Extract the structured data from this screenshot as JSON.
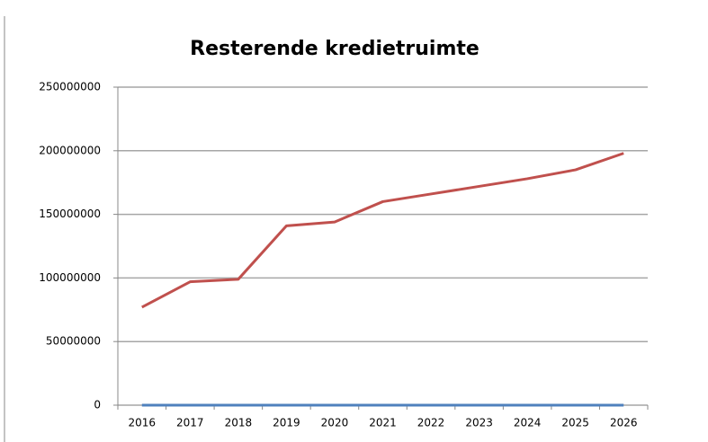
{
  "chart_data": {
    "type": "line",
    "title": "Resterende kredietruimte",
    "categories": [
      "2016",
      "2017",
      "2018",
      "2019",
      "2020",
      "2021",
      "2022",
      "2023",
      "2024",
      "2025",
      "2026"
    ],
    "series": [
      {
        "color": "#c0504d",
        "values": [
          77000000,
          97000000,
          99000000,
          141000000,
          144000000,
          160000000,
          166000000,
          172000000,
          178000000,
          185000000,
          198000000
        ]
      },
      {
        "color": "#4f81bd",
        "values": [
          0,
          0,
          0,
          0,
          0,
          0,
          0,
          0,
          0,
          0,
          0
        ]
      }
    ],
    "ylim": [
      0,
      250000000
    ],
    "yticks": [
      0,
      50000000,
      100000000,
      150000000,
      200000000,
      250000000
    ],
    "grid": true
  }
}
